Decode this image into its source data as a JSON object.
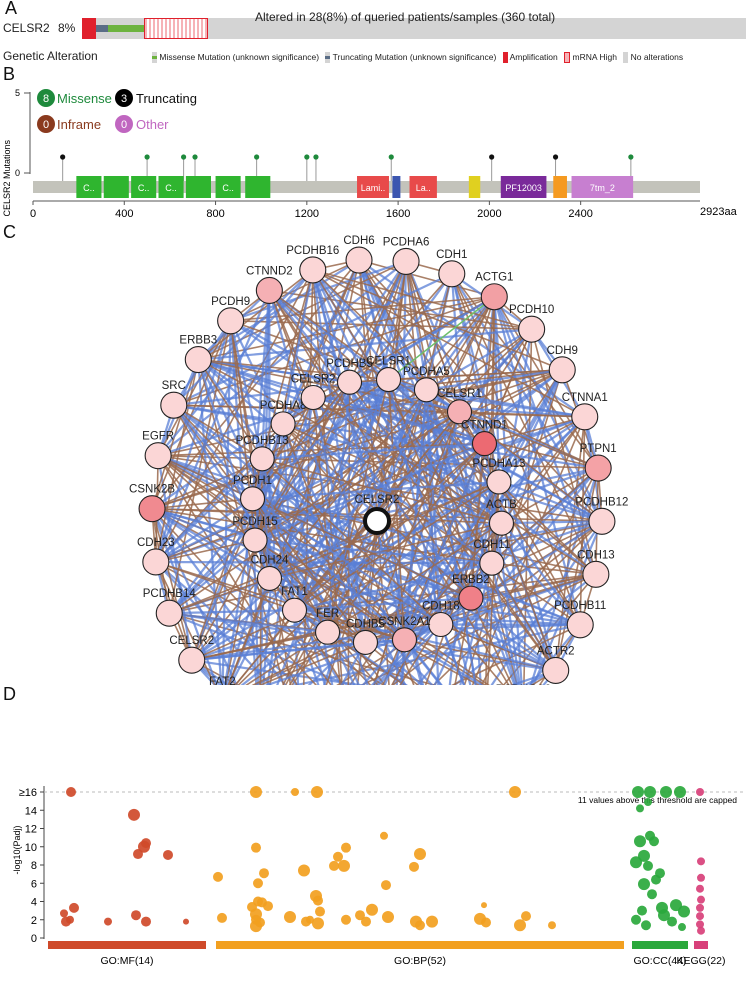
{
  "panelA": {
    "letter": "A",
    "gene": "CELSR2",
    "pct": "8%",
    "altered_text": "Altered in 28(8%) of queried patients/samples (360 total)",
    "genetic_alteration_label": "Genetic Alteration",
    "legend": [
      {
        "label": "Missense Mutation (unknown significance)",
        "color": "#6db33f"
      },
      {
        "label": "Truncating Mutation (unknown significance)",
        "color": "#5a6d86"
      },
      {
        "label": "Amplification",
        "color": "#e0202c"
      },
      {
        "label": "mRNA High",
        "color": "#f4a6ac"
      },
      {
        "label": "No alterations",
        "color": "#d3d3d3"
      }
    ]
  },
  "panelB": {
    "letter": "B",
    "ylabel": "# CELSR2 Mutations",
    "y_ticks": [
      "5",
      "0"
    ],
    "legend": [
      {
        "count": "8",
        "label": "Missense",
        "color": "#1e8a3c"
      },
      {
        "count": "3",
        "label": "Truncating",
        "color": "#000000"
      },
      {
        "count": "0",
        "label": "Inframe",
        "color": "#8a3a1e"
      },
      {
        "count": "0",
        "label": "Other",
        "color": "#c066c0"
      }
    ],
    "x_ticks": [
      "0",
      "400",
      "800",
      "1200",
      "1600",
      "2000",
      "2400"
    ],
    "x_end": "2923aa",
    "domains": [
      {
        "label": "C..",
        "start": 190,
        "end": 300,
        "color": "#2fb52f"
      },
      {
        "label": "",
        "start": 310,
        "end": 420,
        "color": "#2fb52f"
      },
      {
        "label": "C..",
        "start": 430,
        "end": 540,
        "color": "#2fb52f"
      },
      {
        "label": "C..",
        "start": 550,
        "end": 660,
        "color": "#2fb52f"
      },
      {
        "label": "",
        "start": 670,
        "end": 780,
        "color": "#2fb52f"
      },
      {
        "label": "C..",
        "start": 800,
        "end": 910,
        "color": "#2fb52f"
      },
      {
        "label": "",
        "start": 930,
        "end": 1040,
        "color": "#2fb52f"
      },
      {
        "label": "Lami..",
        "start": 1420,
        "end": 1560,
        "color": "#e84a4a"
      },
      {
        "label": "",
        "start": 1575,
        "end": 1610,
        "color": "#3c56b0"
      },
      {
        "label": "La..",
        "start": 1650,
        "end": 1770,
        "color": "#e84a4a"
      },
      {
        "label": "",
        "start": 1910,
        "end": 1960,
        "color": "#e0d020"
      },
      {
        "label": "PF12003",
        "start": 2050,
        "end": 2250,
        "color": "#7a2a9a"
      },
      {
        "label": "",
        "start": 2280,
        "end": 2340,
        "color": "#f59a20"
      },
      {
        "label": "7tm_2",
        "start": 2360,
        "end": 2630,
        "color": "#c77fd0"
      }
    ],
    "mutations": [
      {
        "pos": 130,
        "type": "truncating"
      },
      {
        "pos": 500,
        "type": "missense"
      },
      {
        "pos": 660,
        "type": "missense"
      },
      {
        "pos": 710,
        "type": "missense"
      },
      {
        "pos": 980,
        "type": "missense"
      },
      {
        "pos": 1200,
        "type": "missense"
      },
      {
        "pos": 1240,
        "type": "missense"
      },
      {
        "pos": 1570,
        "type": "missense"
      },
      {
        "pos": 2010,
        "type": "truncating"
      },
      {
        "pos": 2290,
        "type": "truncating"
      },
      {
        "pos": 2620,
        "type": "missense"
      }
    ]
  },
  "panelC": {
    "letter": "C",
    "center": "CELSR2",
    "outer_nodes": [
      {
        "label": "CDH6",
        "color": "#fbd6d6"
      },
      {
        "label": "PCDHA6",
        "color": "#fbd6d6"
      },
      {
        "label": "CDH1",
        "color": "#fbd6d6"
      },
      {
        "label": "ACTG1",
        "color": "#f2a0a4"
      },
      {
        "label": "PCDH10",
        "color": "#fbd6d6"
      },
      {
        "label": "CDH9",
        "color": "#fbd6d6"
      },
      {
        "label": "CTNNA1",
        "color": "#fbd6d6"
      },
      {
        "label": "PTPN1",
        "color": "#f4a2a6"
      },
      {
        "label": "PCDHB12",
        "color": "#fbd6d6"
      },
      {
        "label": "CDH13",
        "color": "#fbd6d6"
      },
      {
        "label": "PCDHB11",
        "color": "#fbd6d6"
      },
      {
        "label": "ACTR2",
        "color": "#fbd6d6"
      },
      {
        "label": "PCDHGA8",
        "color": "#fbd6d6"
      },
      {
        "label": "ACTA1",
        "color": "#f49aa0"
      },
      {
        "label": "PCDHB10",
        "color": "#fbd6d6"
      },
      {
        "label": "CTNNA2",
        "color": "#fbd6d6"
      },
      {
        "label": "PCDHB2",
        "color": "#fbd6d6"
      },
      {
        "label": "FAT3",
        "color": "#fbd6d6"
      },
      {
        "label": "PCHS1",
        "color": "#fbd6d6"
      },
      {
        "label": "FAT2",
        "color": "#fbd6d6"
      },
      {
        "label": "CELSR2",
        "color": "#fbd6d6"
      },
      {
        "label": "PCDHB14",
        "color": "#fbd6d6"
      },
      {
        "label": "CDH23",
        "color": "#fbd6d6"
      },
      {
        "label": "CSNK2B",
        "color": "#f08a90"
      },
      {
        "label": "EGFR",
        "color": "#fbd6d6"
      },
      {
        "label": "SRC",
        "color": "#fbd6d6"
      },
      {
        "label": "ERBB3",
        "color": "#fbd6d6"
      },
      {
        "label": "PCDH9",
        "color": "#fbd6d6"
      },
      {
        "label": "CTNND2",
        "color": "#f5b0b4"
      },
      {
        "label": "PCDHB16",
        "color": "#fbd6d6"
      }
    ],
    "inner_nodes": [
      {
        "label": "PCDHA8",
        "color": "#fbd6d6"
      },
      {
        "label": "CELSR2",
        "color": "#fbd6d6"
      },
      {
        "label": "PCDHB5",
        "color": "#fbd6d6"
      },
      {
        "label": "CELSR1",
        "color": "#fbd6d6"
      },
      {
        "label": "PCDHA5",
        "color": "#fbd6d6"
      },
      {
        "label": "CELSR1",
        "color": "#f5b0b4"
      },
      {
        "label": "CTNND1",
        "color": "#ec6a72"
      },
      {
        "label": "PCDHA13",
        "color": "#fbd6d6"
      },
      {
        "label": "ACTB",
        "color": "#fbd6d6"
      },
      {
        "label": "CDH11",
        "color": "#fbd6d6"
      },
      {
        "label": "ERBB2",
        "color": "#f08088"
      },
      {
        "label": "CDH18",
        "color": "#fbd6d6"
      },
      {
        "label": "CSNK2A1",
        "color": "#f5b0b4"
      },
      {
        "label": "CDHB5",
        "color": "#fbd6d6"
      },
      {
        "label": "FER",
        "color": "#fbd6d6"
      },
      {
        "label": "FAT1",
        "color": "#fbd6d6"
      },
      {
        "label": "CDH24",
        "color": "#fbd6d6"
      },
      {
        "label": "PCDH15",
        "color": "#fbd6d6"
      },
      {
        "label": "PCDH1",
        "color": "#fbd6d6"
      },
      {
        "label": "PCDHB13",
        "color": "#fbd6d6"
      }
    ]
  },
  "panelD": {
    "letter": "D",
    "ylabel": "-log10(Padj)",
    "y_ticks": [
      "0",
      "2",
      "4",
      "6",
      "8",
      "10",
      "12",
      "14",
      "≥16"
    ],
    "cap_note": "11 values above this threshold are capped",
    "categories": [
      {
        "label": "GO:MF(14)",
        "color": "#cf4a2a"
      },
      {
        "label": "GO:BP(52)",
        "color": "#f2a020"
      },
      {
        "label": "GO:CC(44)",
        "color": "#2aa83c"
      },
      {
        "label": "KEGG(22)",
        "color": "#d8407a"
      }
    ]
  }
}
